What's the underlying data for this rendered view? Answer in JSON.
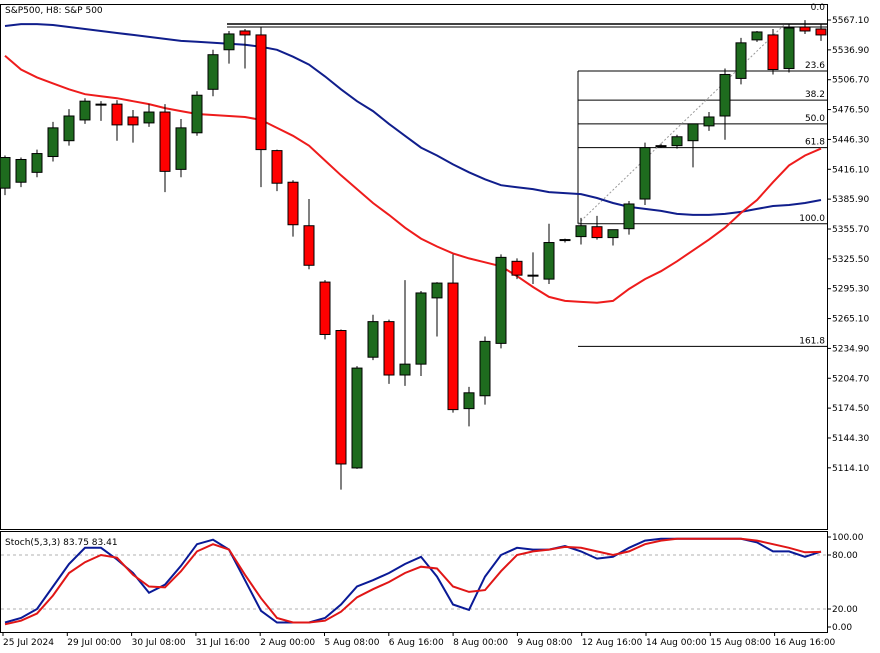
{
  "header": {
    "symbol_label": "S&P500, H8:  S&P 500",
    "stoch_label": "Stoch(5,3,3) 83.75 83.41"
  },
  "colors": {
    "background": "#ffffff",
    "bull": "#1e6b1e",
    "bear": "#ff0000",
    "ma_fast": "#ee1c1c",
    "ma_slow": "#101e8c",
    "stoch_main": "#0a1a96",
    "stoch_signal": "#e01616",
    "fib": "#000000",
    "grid_dash": "#b0b0b0"
  },
  "chart_data": [
    {
      "type": "candlestick",
      "title": "S&P500, H8:  S&P 500",
      "timeframe": "H8",
      "ylim": [
        5084.6,
        5567.1
      ],
      "y_ticks": [
        5567.1,
        5536.9,
        5506.7,
        5476.5,
        5446.3,
        5416.1,
        5385.9,
        5355.7,
        5325.5,
        5295.3,
        5265.1,
        5234.9,
        5204.7,
        5174.5,
        5144.3,
        5114.1
      ],
      "y_tick_labels": [
        "5567.10",
        "5536.90",
        "5506.70",
        "5476.50",
        "5446.30",
        "5416.10",
        "5385.90",
        "5355.70",
        "5325.50",
        "5295.30",
        "5265.10",
        "5234.90",
        "5204.70",
        "5174.50",
        "5144.30",
        "5114.10"
      ],
      "x_labels": [
        "25 Jul 2024",
        "29 Jul 00:00",
        "30 Jul 08:00",
        "31 Jul 16:00",
        "2 Aug 00:00",
        "5 Aug 08:00",
        "6 Aug 16:00",
        "8 Aug 00:00",
        "9 Aug 08:00",
        "12 Aug 16:00",
        "14 Aug 00:00",
        "15 Aug 08:00",
        "16 Aug 16:00"
      ],
      "candles": [
        {
          "o": 5397,
          "h": 5430,
          "l": 5390,
          "c": 5428
        },
        {
          "o": 5403,
          "h": 5428,
          "l": 5398,
          "c": 5426
        },
        {
          "o": 5413,
          "h": 5436,
          "l": 5408,
          "c": 5432
        },
        {
          "o": 5429,
          "h": 5464,
          "l": 5424,
          "c": 5458
        },
        {
          "o": 5445,
          "h": 5477,
          "l": 5440,
          "c": 5470
        },
        {
          "o": 5466,
          "h": 5488,
          "l": 5462,
          "c": 5485
        },
        {
          "o": 5482,
          "h": 5485,
          "l": 5465,
          "c": 5482
        },
        {
          "o": 5482,
          "h": 5486,
          "l": 5445,
          "c": 5461
        },
        {
          "o": 5469,
          "h": 5476,
          "l": 5443,
          "c": 5461
        },
        {
          "o": 5463,
          "h": 5482,
          "l": 5459,
          "c": 5474
        },
        {
          "o": 5474,
          "h": 5482,
          "l": 5393,
          "c": 5414
        },
        {
          "o": 5416,
          "h": 5467,
          "l": 5408,
          "c": 5458
        },
        {
          "o": 5453,
          "h": 5495,
          "l": 5450,
          "c": 5491
        },
        {
          "o": 5497,
          "h": 5537,
          "l": 5490,
          "c": 5532
        },
        {
          "o": 5537,
          "h": 5556,
          "l": 5523,
          "c": 5553
        },
        {
          "o": 5556,
          "h": 5558,
          "l": 5518,
          "c": 5552
        },
        {
          "o": 5552,
          "h": 5560,
          "l": 5398,
          "c": 5436
        },
        {
          "o": 5435,
          "h": 5436,
          "l": 5394,
          "c": 5402
        },
        {
          "o": 5403,
          "h": 5405,
          "l": 5348,
          "c": 5360
        },
        {
          "o": 5359,
          "h": 5386,
          "l": 5315,
          "c": 5319
        },
        {
          "o": 5302,
          "h": 5304,
          "l": 5244,
          "c": 5249
        },
        {
          "o": 5253,
          "h": 5254,
          "l": 5092,
          "c": 5118
        },
        {
          "o": 5114,
          "h": 5217,
          "l": 5113,
          "c": 5215
        },
        {
          "o": 5226,
          "h": 5269,
          "l": 5223,
          "c": 5262
        },
        {
          "o": 5262,
          "h": 5264,
          "l": 5199,
          "c": 5208
        },
        {
          "o": 5208,
          "h": 5304,
          "l": 5197,
          "c": 5219
        },
        {
          "o": 5219,
          "h": 5293,
          "l": 5207,
          "c": 5291
        },
        {
          "o": 5286,
          "h": 5302,
          "l": 5247,
          "c": 5301
        },
        {
          "o": 5301,
          "h": 5330,
          "l": 5170,
          "c": 5173
        },
        {
          "o": 5174,
          "h": 5196,
          "l": 5156,
          "c": 5190
        },
        {
          "o": 5187,
          "h": 5247,
          "l": 5178,
          "c": 5242
        },
        {
          "o": 5240,
          "h": 5330,
          "l": 5235,
          "c": 5327
        },
        {
          "o": 5323,
          "h": 5326,
          "l": 5305,
          "c": 5309
        },
        {
          "o": 5308,
          "h": 5332,
          "l": 5300,
          "c": 5309
        },
        {
          "o": 5305,
          "h": 5361,
          "l": 5300,
          "c": 5342
        },
        {
          "o": 5344,
          "h": 5346,
          "l": 5342,
          "c": 5345
        },
        {
          "o": 5348,
          "h": 5367,
          "l": 5340,
          "c": 5359
        },
        {
          "o": 5358,
          "h": 5369,
          "l": 5345,
          "c": 5347
        },
        {
          "o": 5347,
          "h": 5354,
          "l": 5339,
          "c": 5355
        },
        {
          "o": 5356,
          "h": 5384,
          "l": 5350,
          "c": 5381
        },
        {
          "o": 5386,
          "h": 5443,
          "l": 5380,
          "c": 5438
        },
        {
          "o": 5439,
          "h": 5442,
          "l": 5438,
          "c": 5440
        },
        {
          "o": 5440,
          "h": 5451,
          "l": 5437,
          "c": 5449
        },
        {
          "o": 5445,
          "h": 5462,
          "l": 5418,
          "c": 5462
        },
        {
          "o": 5460,
          "h": 5474,
          "l": 5455,
          "c": 5469
        },
        {
          "o": 5470,
          "h": 5518,
          "l": 5446,
          "c": 5512
        },
        {
          "o": 5508,
          "h": 5549,
          "l": 5502,
          "c": 5544
        },
        {
          "o": 5547,
          "h": 5556,
          "l": 5545,
          "c": 5555
        },
        {
          "o": 5552,
          "h": 5558,
          "l": 5512,
          "c": 5517
        },
        {
          "o": 5518,
          "h": 5563,
          "l": 5514,
          "c": 5559
        },
        {
          "o": 5560,
          "h": 5567,
          "l": 5553,
          "c": 5556
        },
        {
          "o": 5558,
          "h": 5563,
          "l": 5546,
          "c": 5552
        }
      ],
      "ma_fast": [
        [
          0,
          5531
        ],
        [
          1,
          5517
        ],
        [
          2,
          5509
        ],
        [
          3,
          5503
        ],
        [
          4,
          5497
        ],
        [
          5,
          5492
        ],
        [
          6,
          5490
        ],
        [
          7,
          5488
        ],
        [
          8,
          5485
        ],
        [
          9,
          5482
        ],
        [
          10,
          5478
        ],
        [
          11,
          5475
        ],
        [
          12,
          5472
        ],
        [
          13,
          5471
        ],
        [
          14,
          5470
        ],
        [
          15,
          5469
        ],
        [
          16,
          5466
        ],
        [
          17,
          5458
        ],
        [
          18,
          5450
        ],
        [
          19,
          5440
        ],
        [
          20,
          5425
        ],
        [
          21,
          5410
        ],
        [
          22,
          5396
        ],
        [
          23,
          5382
        ],
        [
          24,
          5370
        ],
        [
          25,
          5357
        ],
        [
          26,
          5346
        ],
        [
          27,
          5338
        ],
        [
          28,
          5331
        ],
        [
          29,
          5326
        ],
        [
          30,
          5322
        ],
        [
          31,
          5318
        ],
        [
          32,
          5308
        ],
        [
          33,
          5297
        ],
        [
          34,
          5287
        ],
        [
          35,
          5283
        ],
        [
          36,
          5282
        ],
        [
          37,
          5281
        ],
        [
          38,
          5283
        ],
        [
          39,
          5295
        ],
        [
          40,
          5305
        ],
        [
          41,
          5313
        ],
        [
          42,
          5323
        ],
        [
          43,
          5334
        ],
        [
          44,
          5345
        ],
        [
          45,
          5357
        ],
        [
          46,
          5372
        ],
        [
          47,
          5385
        ],
        [
          48,
          5403
        ],
        [
          49,
          5420
        ],
        [
          50,
          5430
        ],
        [
          51,
          5437
        ]
      ],
      "ma_slow": [
        [
          0,
          5561
        ],
        [
          1,
          5563
        ],
        [
          2,
          5563
        ],
        [
          3,
          5562
        ],
        [
          4,
          5560
        ],
        [
          5,
          5558
        ],
        [
          6,
          5556
        ],
        [
          7,
          5554
        ],
        [
          8,
          5552
        ],
        [
          9,
          5550
        ],
        [
          10,
          5548
        ],
        [
          11,
          5546
        ],
        [
          12,
          5545
        ],
        [
          13,
          5544
        ],
        [
          14,
          5543
        ],
        [
          15,
          5542
        ],
        [
          16,
          5540
        ],
        [
          17,
          5537
        ],
        [
          18,
          5530
        ],
        [
          19,
          5522
        ],
        [
          20,
          5510
        ],
        [
          21,
          5497
        ],
        [
          22,
          5485
        ],
        [
          23,
          5475
        ],
        [
          24,
          5462
        ],
        [
          25,
          5450
        ],
        [
          26,
          5438
        ],
        [
          27,
          5430
        ],
        [
          28,
          5421
        ],
        [
          29,
          5413
        ],
        [
          30,
          5406
        ],
        [
          31,
          5400
        ],
        [
          32,
          5398
        ],
        [
          33,
          5396
        ],
        [
          34,
          5393
        ],
        [
          35,
          5392
        ],
        [
          36,
          5391
        ],
        [
          37,
          5387
        ],
        [
          38,
          5382
        ],
        [
          39,
          5378
        ],
        [
          40,
          5376
        ],
        [
          41,
          5374
        ],
        [
          42,
          5371
        ],
        [
          43,
          5370
        ],
        [
          44,
          5370
        ],
        [
          45,
          5371
        ],
        [
          46,
          5373
        ],
        [
          47,
          5376
        ],
        [
          48,
          5379
        ],
        [
          49,
          5380
        ],
        [
          50,
          5382
        ],
        [
          51,
          5385
        ]
      ],
      "fib_levels": [
        {
          "label": "0.0",
          "value": 5563
        },
        {
          "label": "23.6",
          "value": 5515.5
        },
        {
          "label": "38.2",
          "value": 5486
        },
        {
          "label": "50.0",
          "value": 5462
        },
        {
          "label": "61.8",
          "value": 5438
        },
        {
          "label": "100.0",
          "value": 5361
        },
        {
          "label": "161.8",
          "value": 5237
        }
      ]
    },
    {
      "type": "line",
      "title": "Stoch(5,3,3) 83.75 83.41",
      "ylim": [
        0,
        100
      ],
      "y_ticks": [
        100.0,
        80.0,
        20.0,
        0.0
      ],
      "y_tick_labels": [
        "100.00",
        "80.00",
        "20.00",
        "0.00"
      ],
      "levels": [
        80,
        20
      ],
      "series": [
        {
          "name": "main",
          "values": [
            5,
            10,
            20,
            45,
            70,
            88,
            88,
            75,
            60,
            38,
            47,
            68,
            92,
            97,
            86,
            52,
            18,
            5,
            5,
            5,
            10,
            25,
            45,
            52,
            60,
            70,
            78,
            56,
            25,
            19,
            56,
            80,
            88,
            86,
            86,
            90,
            84,
            76,
            78,
            88,
            96,
            98,
            98,
            98,
            98,
            98,
            98,
            94,
            84,
            84,
            78,
            83.75
          ]
        },
        {
          "name": "signal",
          "values": [
            3,
            7,
            15,
            35,
            60,
            72,
            80,
            77,
            58,
            45,
            44,
            62,
            84,
            92,
            86,
            58,
            32,
            10,
            5,
            5,
            7,
            17,
            33,
            42,
            50,
            60,
            67,
            65,
            45,
            39,
            41,
            62,
            80,
            84,
            86,
            89,
            88,
            84,
            80,
            84,
            92,
            96,
            98,
            98,
            98,
            98,
            98,
            96,
            92,
            88,
            83,
            83.41
          ]
        }
      ]
    }
  ]
}
